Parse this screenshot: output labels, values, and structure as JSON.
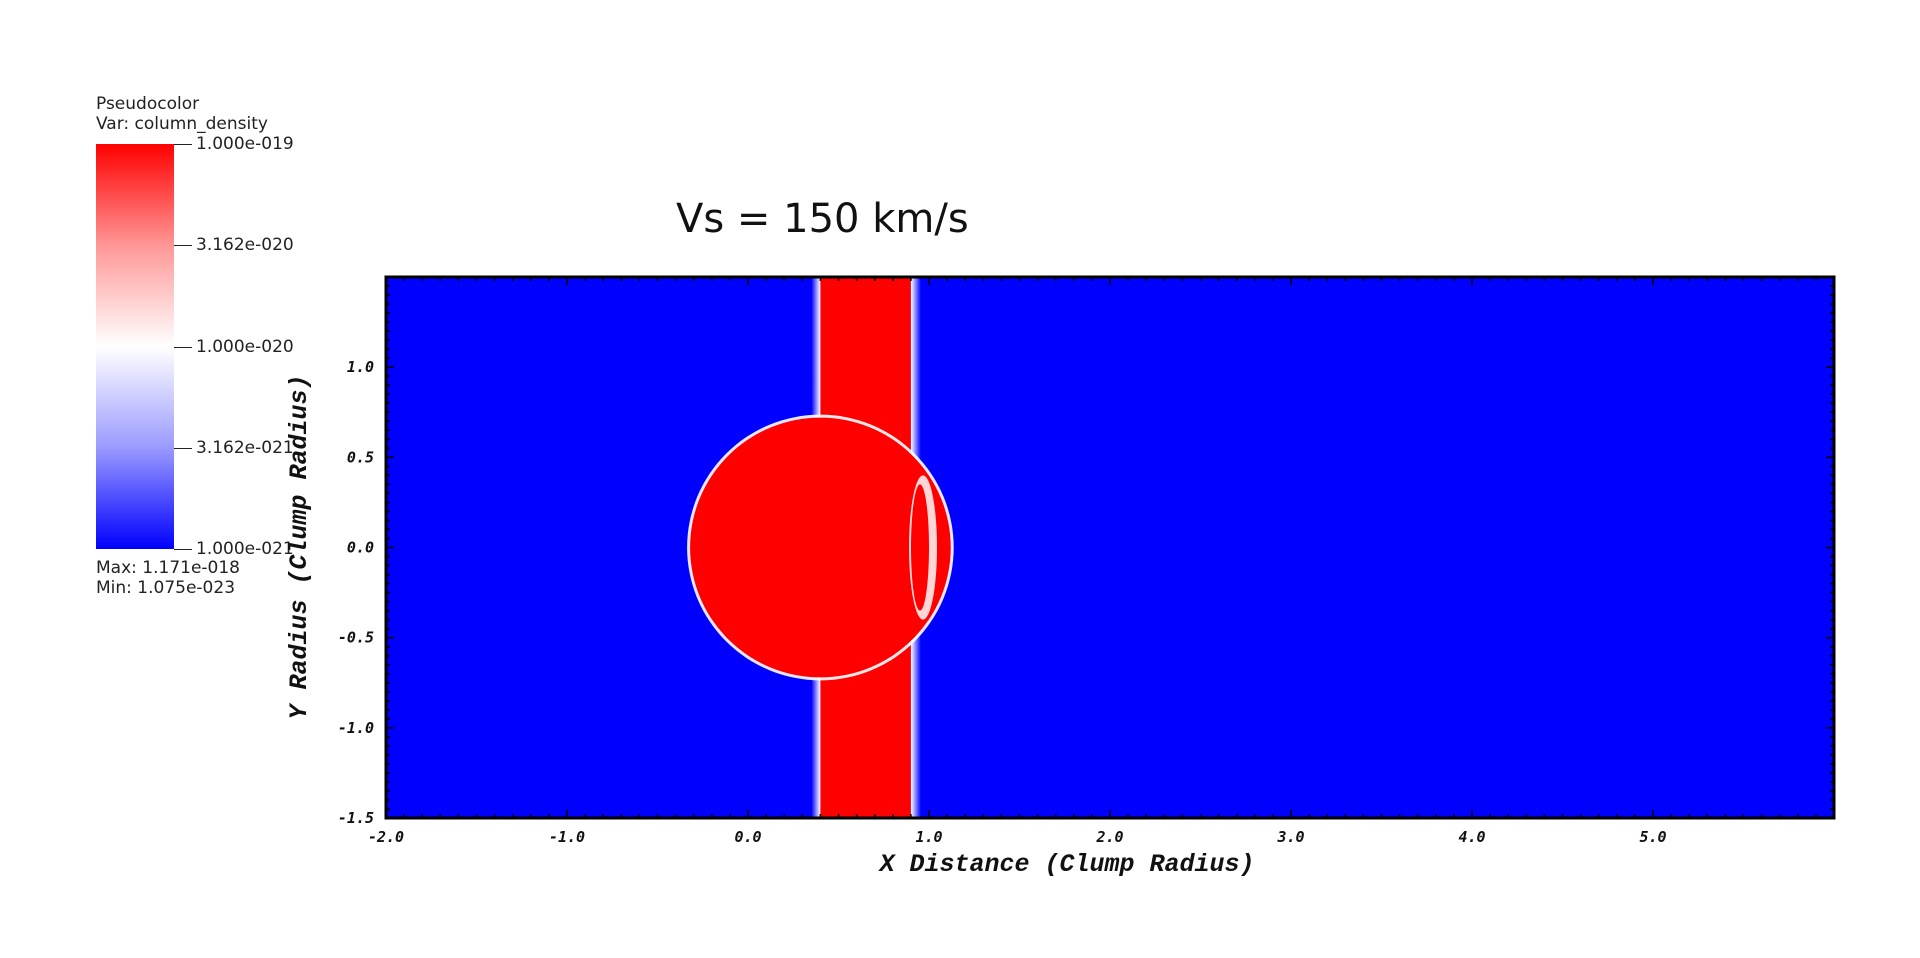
{
  "legend": {
    "plot_type": "Pseudocolor",
    "variable": "Var: column_density",
    "ticks": [
      "1.000e-019",
      "3.162e-020",
      "1.000e-020",
      "3.162e-021",
      "1.000e-021"
    ],
    "max_label": "Max:  1.171e-018",
    "min_label": "Min:  1.075e-023",
    "colors": {
      "high": "#ff0000",
      "mid": "#ffffff",
      "low": "#0000ff"
    }
  },
  "chart_data": {
    "type": "heatmap",
    "title": "Vs = 150 km/s",
    "xlabel": "X Distance (Clump Radius)",
    "ylabel": "Y Radius (Clump Radius)",
    "xlim": [
      -2.0,
      6.0
    ],
    "ylim": [
      -1.5,
      1.5
    ],
    "x_ticks": [
      "-2.0",
      "-1.0",
      "0.0",
      "1.0",
      "2.0",
      "3.0",
      "4.0",
      "5.0"
    ],
    "y_ticks": [
      "-1.5",
      "-1.0",
      "-0.5",
      "0.0",
      "0.5",
      "1.0"
    ],
    "scale": "log",
    "value_range": [
      1e-21,
      1e-19
    ],
    "features": {
      "background_value": 1e-21,
      "slab_x": [
        0.4,
        0.9
      ],
      "slab_value": 1e-19,
      "clump_center": [
        0.4,
        0.0
      ],
      "clump_radius": 0.72,
      "clump_value": 1e-19,
      "bow_bump_x": 1.0
    }
  }
}
